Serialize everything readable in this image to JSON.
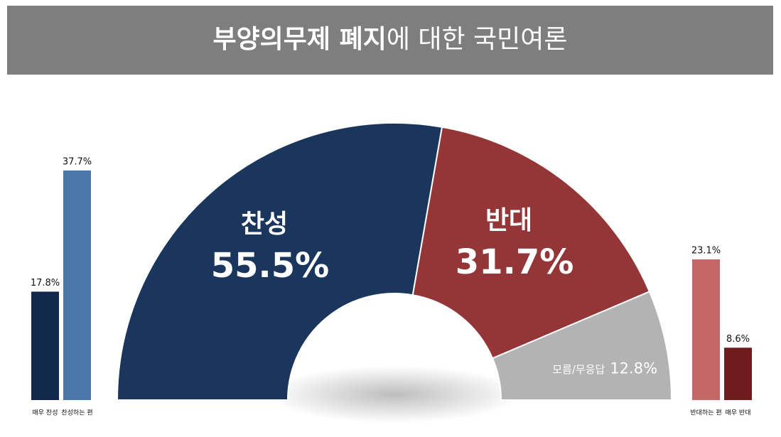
{
  "title": [
    "부양의무제 폐지",
    "에 대한 국민여론"
  ],
  "chart_data": [
    {
      "type": "pie",
      "categories": [
        "찬성",
        "반대",
        "모름/무응답"
      ],
      "values": [
        55.5,
        31.7,
        12.8
      ],
      "value_labels": [
        "55.5%",
        "31.7%",
        "12.8%"
      ],
      "colors": [
        "#1b365d",
        "#943537",
        "#b3b3b3"
      ]
    },
    {
      "type": "bar",
      "categories": [
        "매우 찬성",
        "찬성하는 편"
      ],
      "values": [
        17.8,
        37.7
      ],
      "value_labels": [
        "17.8%",
        "37.7%"
      ],
      "colors": [
        "#13294b",
        "#4a76a8"
      ]
    },
    {
      "type": "bar",
      "categories": [
        "반대하는 편",
        "매우 반대"
      ],
      "values": [
        23.1,
        8.6
      ],
      "value_labels": [
        "23.1%",
        "8.6%"
      ],
      "colors": [
        "#c56767",
        "#701c1e"
      ]
    }
  ]
}
